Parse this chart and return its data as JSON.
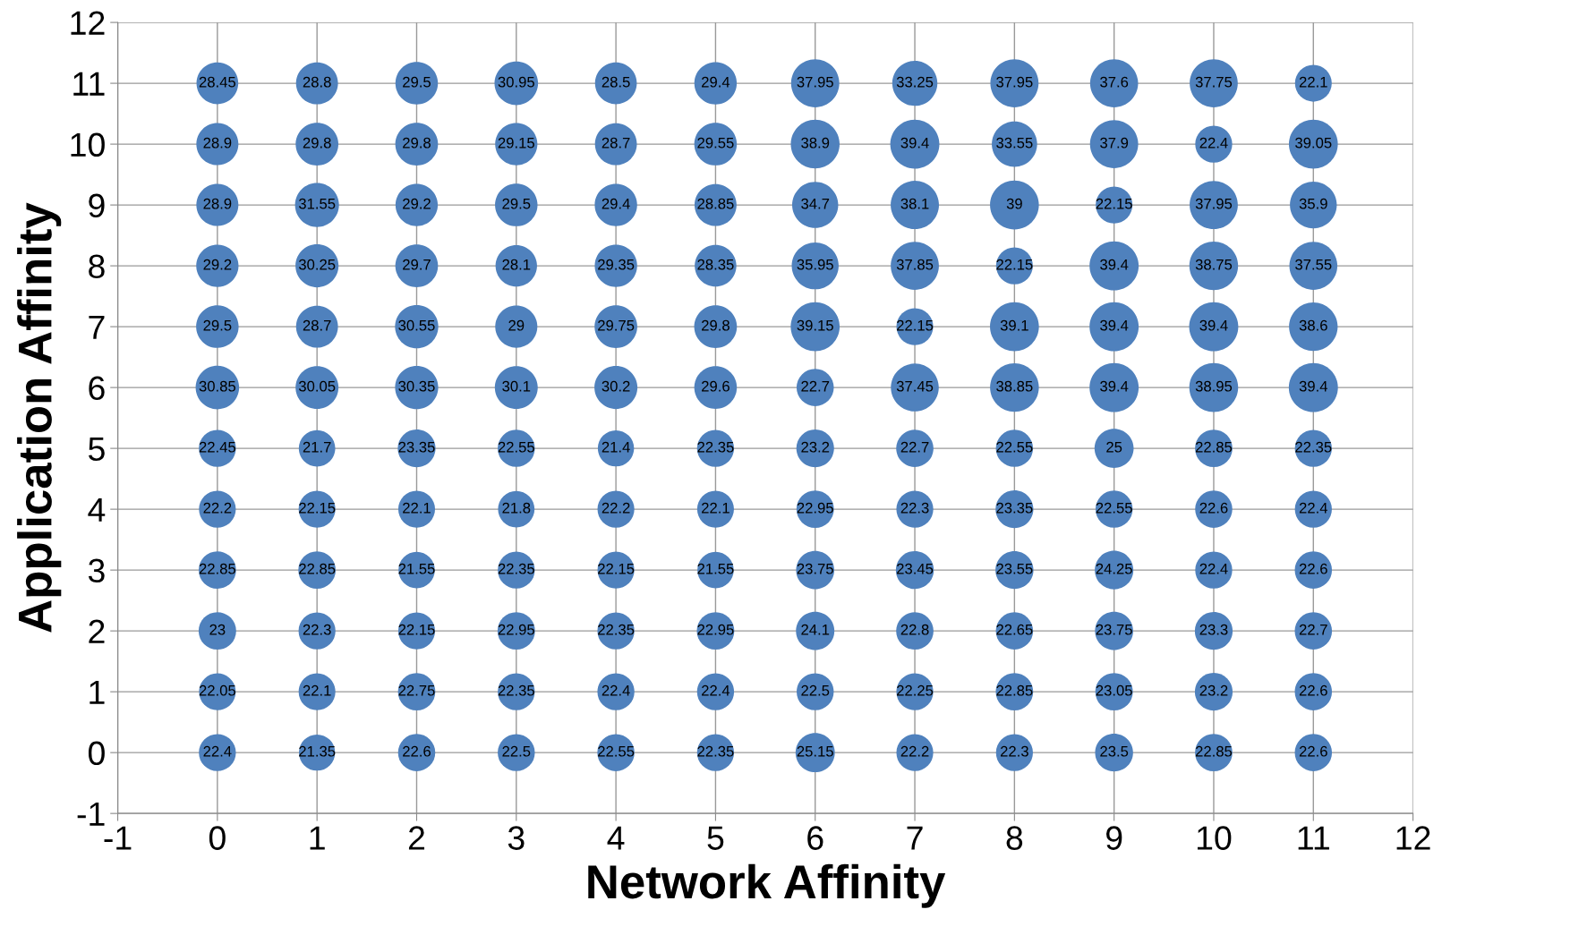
{
  "chart_data": {
    "type": "bubble",
    "xlabel": "Network Affinity",
    "ylabel": "Application Affinity",
    "xlim": [
      -1,
      12
    ],
    "ylim": [
      -1,
      12
    ],
    "xticks": [
      -1,
      0,
      1,
      2,
      3,
      4,
      5,
      6,
      7,
      8,
      9,
      10,
      11,
      12
    ],
    "yticks": [
      -1,
      0,
      1,
      2,
      3,
      4,
      5,
      6,
      7,
      8,
      9,
      10,
      11,
      12
    ],
    "grid": true,
    "series": [
      {
        "color": "#4f81bd",
        "x": [
          0,
          1,
          2,
          3,
          4,
          5,
          6,
          7,
          8,
          9,
          10,
          11
        ],
        "values": [
          11,
          11,
          11,
          11,
          11,
          11,
          11,
          11,
          11,
          11,
          11,
          11
        ],
        "sizes": [
          28.45,
          28.8,
          29.5,
          30.95,
          28.5,
          29.4,
          37.95,
          33.25,
          37.95,
          37.6,
          37.75,
          22.1
        ],
        "value_labels": [
          "28.45",
          "28.8",
          "29.5",
          "30.95",
          "28.5",
          "29.4",
          "37.95",
          "33.25",
          "37.95",
          "37.6",
          "37.75",
          "22.1"
        ]
      },
      {
        "color": "#4f81bd",
        "x": [
          0,
          1,
          2,
          3,
          4,
          5,
          6,
          7,
          8,
          9,
          10,
          11
        ],
        "values": [
          10,
          10,
          10,
          10,
          10,
          10,
          10,
          10,
          10,
          10,
          10,
          10
        ],
        "sizes": [
          28.9,
          29.8,
          29.8,
          29.15,
          28.7,
          29.55,
          38.9,
          39.4,
          33.55,
          37.9,
          22.4,
          39.05
        ],
        "value_labels": [
          "28.9",
          "29.8",
          "29.8",
          "29.15",
          "28.7",
          "29.55",
          "38.9",
          "39.4",
          "33.55",
          "37.9",
          "22.4",
          "39.05"
        ]
      },
      {
        "color": "#4f81bd",
        "x": [
          0,
          1,
          2,
          3,
          4,
          5,
          6,
          7,
          8,
          9,
          10,
          11
        ],
        "values": [
          9,
          9,
          9,
          9,
          9,
          9,
          9,
          9,
          9,
          9,
          9,
          9
        ],
        "sizes": [
          28.9,
          31.55,
          29.2,
          29.5,
          29.4,
          28.85,
          34.7,
          38.1,
          39,
          22.15,
          37.95,
          35.9
        ],
        "value_labels": [
          "28.9",
          "31.55",
          "29.2",
          "29.5",
          "29.4",
          "28.85",
          "34.7",
          "38.1",
          "39",
          "22.15",
          "37.95",
          "35.9"
        ]
      },
      {
        "color": "#4f81bd",
        "x": [
          0,
          1,
          2,
          3,
          4,
          5,
          6,
          7,
          8,
          9,
          10,
          11
        ],
        "values": [
          8,
          8,
          8,
          8,
          8,
          8,
          8,
          8,
          8,
          8,
          8,
          8
        ],
        "sizes": [
          29.2,
          30.25,
          29.7,
          28.1,
          29.35,
          28.35,
          35.95,
          37.85,
          22.15,
          39.4,
          38.75,
          37.55
        ],
        "value_labels": [
          "29.2",
          "30.25",
          "29.7",
          "28.1",
          "29.35",
          "28.35",
          "35.95",
          "37.85",
          "22.15",
          "39.4",
          "38.75",
          "37.55"
        ]
      },
      {
        "color": "#4f81bd",
        "x": [
          0,
          1,
          2,
          3,
          4,
          5,
          6,
          7,
          8,
          9,
          10,
          11
        ],
        "values": [
          7,
          7,
          7,
          7,
          7,
          7,
          7,
          7,
          7,
          7,
          7,
          7
        ],
        "sizes": [
          29.5,
          28.7,
          30.55,
          29,
          29.75,
          29.8,
          39.15,
          22.15,
          39.1,
          39.4,
          39.4,
          38.6
        ],
        "value_labels": [
          "29.5",
          "28.7",
          "30.55",
          "29",
          "29.75",
          "29.8",
          "39.15",
          "22.15",
          "39.1",
          "39.4",
          "39.4",
          "38.6"
        ]
      },
      {
        "color": "#4f81bd",
        "x": [
          0,
          1,
          2,
          3,
          4,
          5,
          6,
          7,
          8,
          9,
          10,
          11
        ],
        "values": [
          6,
          6,
          6,
          6,
          6,
          6,
          6,
          6,
          6,
          6,
          6,
          6
        ],
        "sizes": [
          30.85,
          30.05,
          30.35,
          30.1,
          30.2,
          29.6,
          22.7,
          37.45,
          38.85,
          39.4,
          38.95,
          39.4
        ],
        "value_labels": [
          "30.85",
          "30.05",
          "30.35",
          "30.1",
          "30.2",
          "29.6",
          "22.7",
          "37.45",
          "38.85",
          "39.4",
          "38.95",
          "39.4"
        ]
      },
      {
        "color": "#4f81bd",
        "x": [
          0,
          1,
          2,
          3,
          4,
          5,
          6,
          7,
          8,
          9,
          10,
          11
        ],
        "values": [
          5,
          5,
          5,
          5,
          5,
          5,
          5,
          5,
          5,
          5,
          5,
          5
        ],
        "sizes": [
          22.45,
          21.7,
          23.35,
          22.55,
          21.4,
          22.35,
          23.2,
          22.7,
          22.55,
          25,
          22.85,
          22.35
        ],
        "value_labels": [
          "22.45",
          "21.7",
          "23.35",
          "22.55",
          "21.4",
          "22.35",
          "23.2",
          "22.7",
          "22.55",
          "25",
          "22.85",
          "22.35"
        ]
      },
      {
        "color": "#4f81bd",
        "x": [
          0,
          1,
          2,
          3,
          4,
          5,
          6,
          7,
          8,
          9,
          10,
          11
        ],
        "values": [
          4,
          4,
          4,
          4,
          4,
          4,
          4,
          4,
          4,
          4,
          4,
          4
        ],
        "sizes": [
          22.2,
          22.15,
          22.1,
          21.8,
          22.2,
          22.1,
          22.95,
          22.3,
          23.35,
          22.55,
          22.6,
          22.4
        ],
        "value_labels": [
          "22.2",
          "22.15",
          "22.1",
          "21.8",
          "22.2",
          "22.1",
          "22.95",
          "22.3",
          "23.35",
          "22.55",
          "22.6",
          "22.4"
        ]
      },
      {
        "color": "#4f81bd",
        "x": [
          0,
          1,
          2,
          3,
          4,
          5,
          6,
          7,
          8,
          9,
          10,
          11
        ],
        "values": [
          3,
          3,
          3,
          3,
          3,
          3,
          3,
          3,
          3,
          3,
          3,
          3
        ],
        "sizes": [
          22.85,
          22.85,
          21.55,
          22.35,
          22.15,
          21.55,
          23.75,
          23.45,
          23.55,
          24.25,
          22.4,
          22.6
        ],
        "value_labels": [
          "22.85",
          "22.85",
          "21.55",
          "22.35",
          "22.15",
          "21.55",
          "23.75",
          "23.45",
          "23.55",
          "24.25",
          "22.4",
          "22.6"
        ]
      },
      {
        "color": "#4f81bd",
        "x": [
          0,
          1,
          2,
          3,
          4,
          5,
          6,
          7,
          8,
          9,
          10,
          11
        ],
        "values": [
          2,
          2,
          2,
          2,
          2,
          2,
          2,
          2,
          2,
          2,
          2,
          2
        ],
        "sizes": [
          23,
          22.3,
          22.15,
          22.95,
          22.35,
          22.95,
          24.1,
          22.8,
          22.65,
          23.75,
          23.3,
          22.7
        ],
        "value_labels": [
          "23",
          "22.3",
          "22.15",
          "22.95",
          "22.35",
          "22.95",
          "24.1",
          "22.8",
          "22.65",
          "23.75",
          "23.3",
          "22.7"
        ]
      },
      {
        "color": "#4f81bd",
        "x": [
          0,
          1,
          2,
          3,
          4,
          5,
          6,
          7,
          8,
          9,
          10,
          11
        ],
        "values": [
          1,
          1,
          1,
          1,
          1,
          1,
          1,
          1,
          1,
          1,
          1,
          1
        ],
        "sizes": [
          22.05,
          22.1,
          22.75,
          22.35,
          22.4,
          22.4,
          22.5,
          22.25,
          22.85,
          23.05,
          23.2,
          22.6
        ],
        "value_labels": [
          "22.05",
          "22.1",
          "22.75",
          "22.35",
          "22.4",
          "22.4",
          "22.5",
          "22.25",
          "22.85",
          "23.05",
          "23.2",
          "22.6"
        ]
      },
      {
        "color": "#4f81bd",
        "x": [
          0,
          1,
          2,
          3,
          4,
          5,
          6,
          7,
          8,
          9,
          10,
          11
        ],
        "values": [
          0,
          0,
          0,
          0,
          0,
          0,
          0,
          0,
          0,
          0,
          0,
          0
        ],
        "sizes": [
          22.4,
          21.35,
          22.6,
          22.5,
          22.55,
          22.35,
          25.15,
          22.2,
          22.3,
          23.5,
          22.85,
          22.6
        ],
        "value_labels": [
          "22.4",
          "21.35",
          "22.6",
          "22.5",
          "22.55",
          "22.35",
          "25.15",
          "22.2",
          "22.3",
          "23.5",
          "22.85",
          "22.6"
        ]
      }
    ]
  }
}
